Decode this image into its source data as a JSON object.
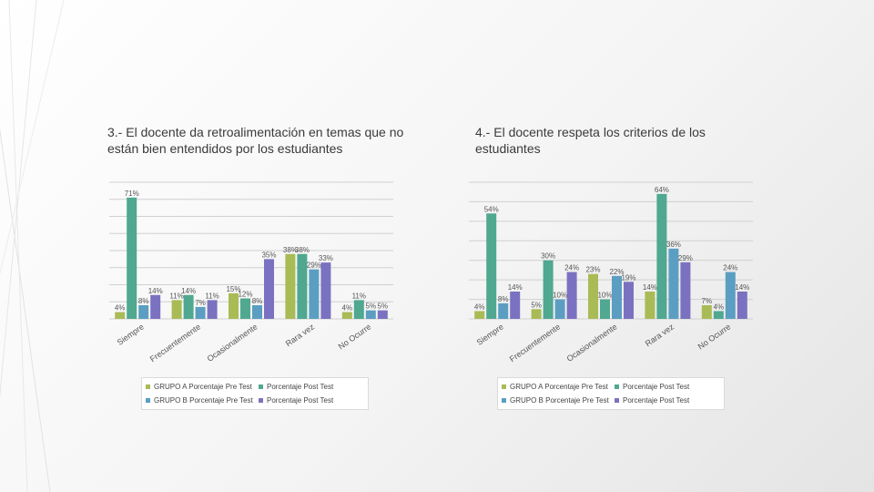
{
  "colors": {
    "grupo_a_pre": "#a9bb55",
    "grupo_a_post": "#4fa88f",
    "grupo_b_pre": "#5b9ec2",
    "grupo_b_post": "#7a72c0",
    "grid": "#d0d0d0",
    "label": "#555555"
  },
  "chart_data": [
    {
      "type": "bar",
      "title": "3.- El docente da retroalimentación en temas que no están bien entendidos por los estudiantes",
      "categories": [
        "Siempre",
        "Frecuentemente",
        "Ocasionalmente",
        "Rara vez",
        "No Ocurre"
      ],
      "series": [
        {
          "name": "GRUPO A Porcentaje Pre Test",
          "values": [
            4,
            11,
            15,
            38,
            4
          ]
        },
        {
          "name": "Porcentaje Post Test",
          "values": [
            71,
            14,
            12,
            38,
            11
          ]
        },
        {
          "name": "GRUPO B Porcentaje Pre Test",
          "values": [
            8,
            7,
            8,
            29,
            5
          ]
        },
        {
          "name": "Porcentaje Post Test",
          "values": [
            14,
            11,
            35,
            33,
            5
          ]
        }
      ],
      "point_labels": [
        [
          "4%",
          "11%",
          "15%",
          "38%",
          "4%"
        ],
        [
          "71%",
          "14%",
          "12%",
          "38%",
          "11%"
        ],
        [
          "8%",
          "7%",
          "8%",
          "29%",
          "5%"
        ],
        [
          "14%",
          "11%",
          "35%",
          "33%",
          "5%"
        ]
      ],
      "ylim": [
        0,
        80
      ],
      "grid": true,
      "legend": "bottom"
    },
    {
      "type": "bar",
      "title": "4.- El docente respeta los criterios de los estudiantes",
      "categories": [
        "Siempre",
        "Frecuentemente",
        "Ocasionalmente",
        "Rara vez",
        "No Ocurre"
      ],
      "series": [
        {
          "name": "GRUPO A Porcentaje Pre Test",
          "values": [
            4,
            5,
            23,
            14,
            7
          ]
        },
        {
          "name": "Porcentaje Post Test",
          "values": [
            54,
            30,
            10,
            64,
            4
          ]
        },
        {
          "name": "GRUPO B Porcentaje Pre Test",
          "values": [
            8,
            10,
            22,
            36,
            24
          ]
        },
        {
          "name": "Porcentaje Post Test",
          "values": [
            14,
            24,
            19,
            29,
            14
          ]
        }
      ],
      "point_labels": [
        [
          "4%",
          "5%",
          "23%",
          "14%",
          "7%"
        ],
        [
          "54%",
          "30%",
          "10%",
          "64%",
          "4%"
        ],
        [
          "8%",
          "10%",
          "22%",
          "36%",
          "24%"
        ],
        [
          "14%",
          "24%",
          "19%",
          "29%",
          "14%"
        ]
      ],
      "ylim": [
        0,
        70
      ],
      "grid": true,
      "legend": "bottom"
    }
  ],
  "legends": [
    {
      "items": [
        "GRUPO A Porcentaje Pre Test",
        "Porcentaje Post Test",
        "GRUPO B Porcentaje Pre Test",
        "Porcentaje Post Test"
      ]
    },
    {
      "items": [
        "GRUPO A Porcentaje Pre Test",
        "Porcentaje Post Test",
        "GRUPO B Porcentaje Pre Test",
        "Porcentaje Post Test"
      ]
    }
  ]
}
